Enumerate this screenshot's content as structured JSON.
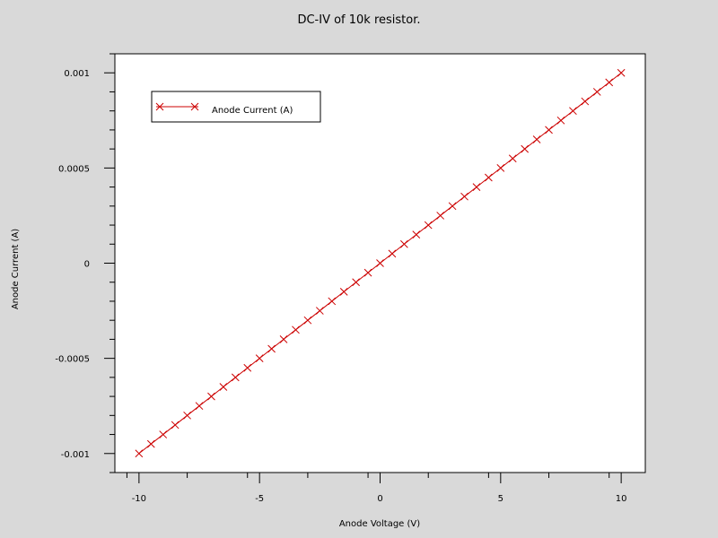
{
  "chart_data": {
    "type": "line",
    "title": "DC-IV of 10k resistor.",
    "xlabel": "Anode Voltage (V)",
    "ylabel": "Anode Current (A)",
    "xlim": [
      -11,
      11
    ],
    "ylim": [
      -0.0011,
      0.0011
    ],
    "x_ticks": [
      {
        "v": -10,
        "label": "-10"
      },
      {
        "v": -5,
        "label": "-5"
      },
      {
        "v": 0,
        "label": "0"
      },
      {
        "v": 5,
        "label": "5"
      },
      {
        "v": 10,
        "label": "10"
      }
    ],
    "y_ticks": [
      {
        "v": 0.001,
        "label": "0.001"
      },
      {
        "v": 0.0005,
        "label": "0.0005"
      },
      {
        "v": 0,
        "label": "0"
      },
      {
        "v": -0.0005,
        "label": "-0.0005"
      },
      {
        "v": -0.001,
        "label": "-0.001"
      }
    ],
    "grid": false,
    "legend_position": "top-left",
    "series": [
      {
        "name": "Anode Current (A)",
        "color": "#cc0000",
        "marker": "x",
        "x": [
          -10,
          -9.5,
          -9,
          -8.5,
          -8,
          -7.5,
          -7,
          -6.5,
          -6,
          -5.5,
          -5,
          -4.5,
          -4,
          -3.5,
          -3,
          -2.5,
          -2,
          -1.5,
          -1,
          -0.5,
          0,
          0.5,
          1,
          1.5,
          2,
          2.5,
          3,
          3.5,
          4,
          4.5,
          5,
          5.5,
          6,
          6.5,
          7,
          7.5,
          8,
          8.5,
          9,
          9.5,
          10
        ],
        "y": [
          -0.001,
          -0.00095,
          -0.0009,
          -0.00085,
          -0.0008,
          -0.00075,
          -0.0007,
          -0.00065,
          -0.0006,
          -0.00055,
          -0.0005,
          -0.00045,
          -0.0004,
          -0.00035,
          -0.0003,
          -0.00025,
          -0.0002,
          -0.00015,
          -0.0001,
          -5e-05,
          0,
          5e-05,
          0.0001,
          0.00015,
          0.0002,
          0.00025,
          0.0003,
          0.00035,
          0.0004,
          0.00045,
          0.0005,
          0.00055,
          0.0006,
          0.00065,
          0.0007,
          0.00075,
          0.0008,
          0.00085,
          0.0009,
          0.00095,
          0.001
        ]
      }
    ]
  }
}
